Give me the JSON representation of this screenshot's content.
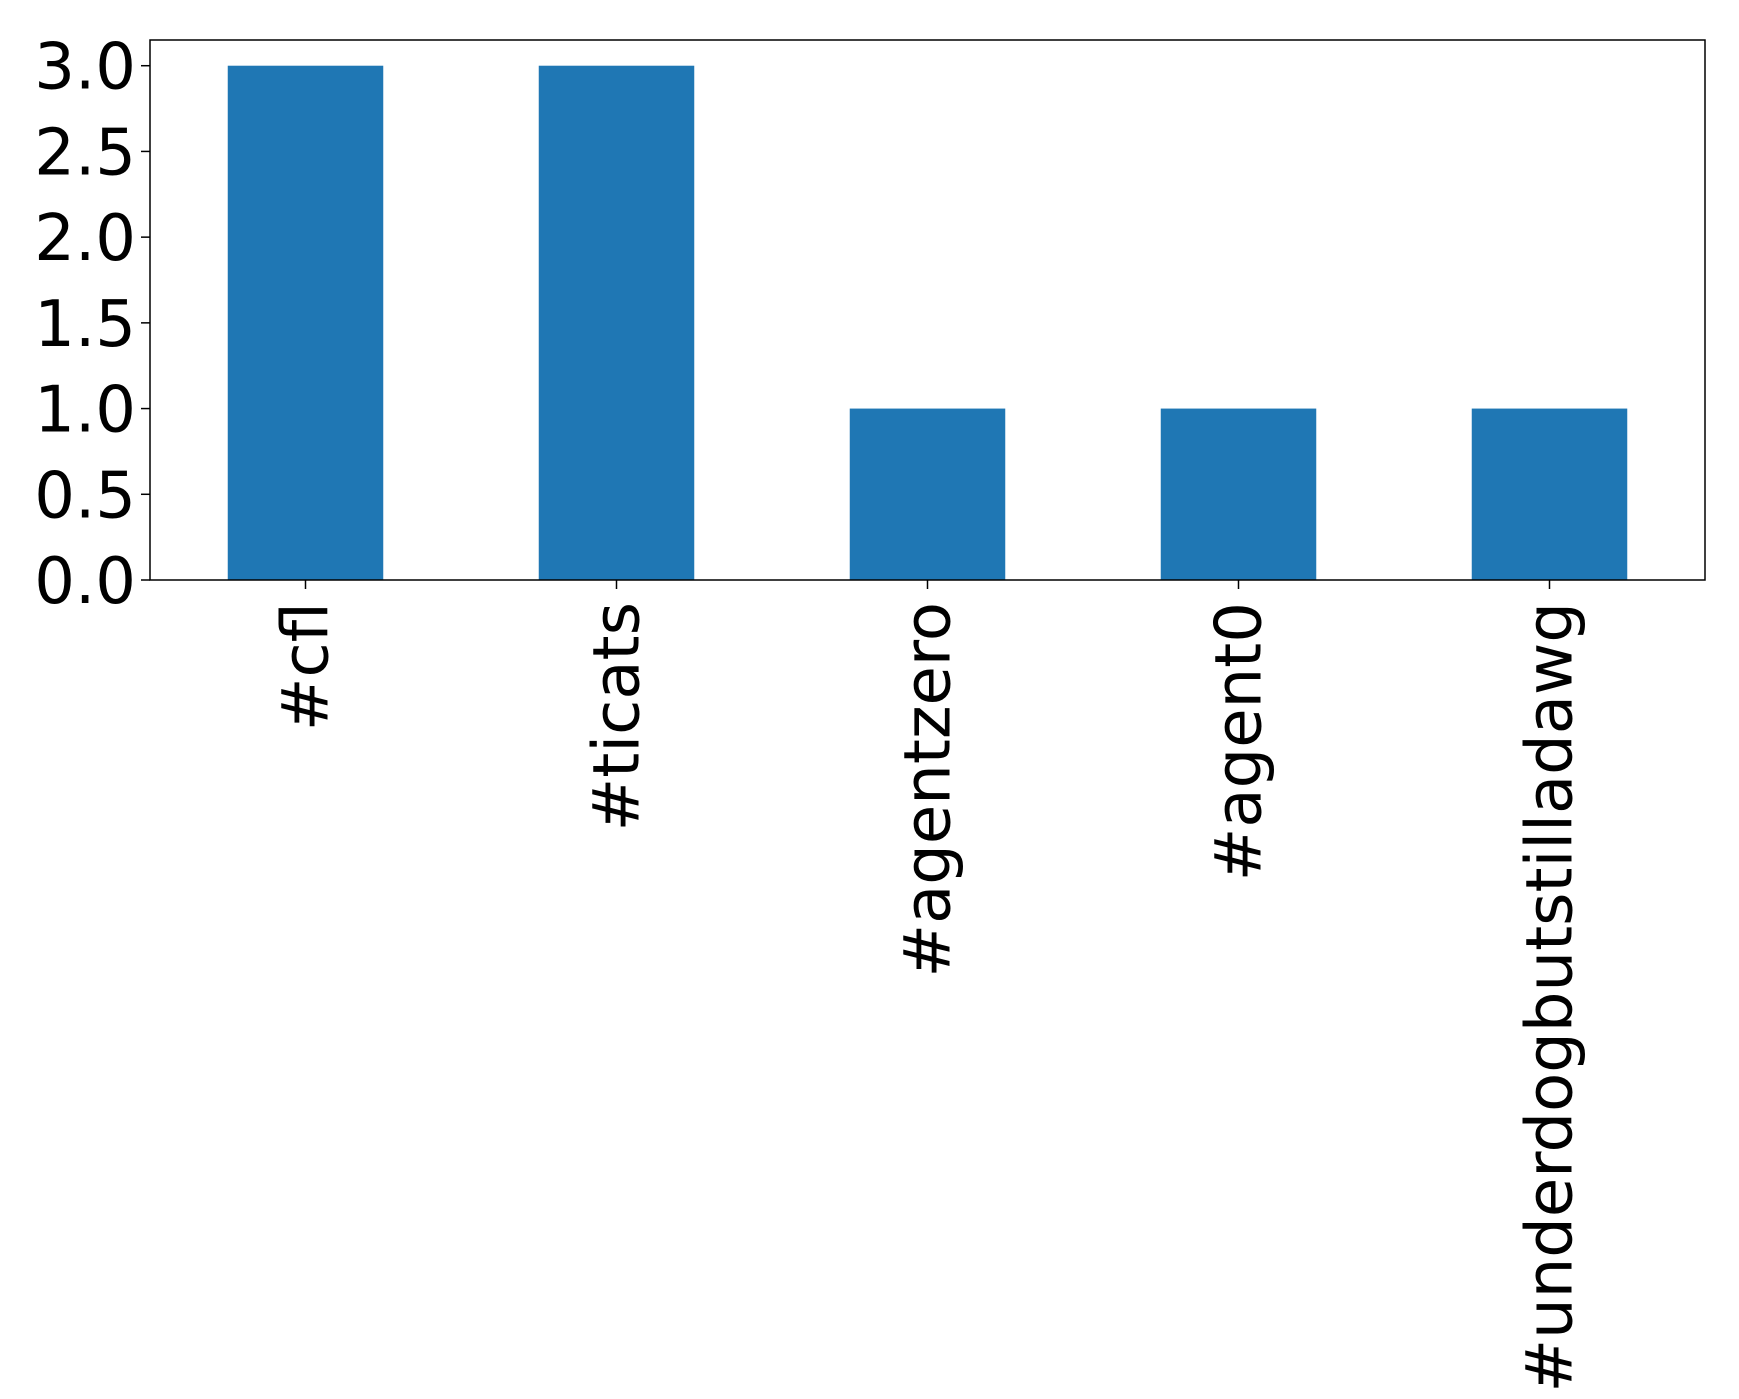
{
  "chart_data": {
    "type": "bar",
    "categories": [
      "#cfl",
      "#ticats",
      "#agentzero",
      "#agent0",
      "#underdogbutstilladawg"
    ],
    "values": [
      3,
      3,
      1,
      1,
      1
    ],
    "ylim": [
      0,
      3.15
    ],
    "yticks": [
      "0.0",
      "0.5",
      "1.0",
      "1.5",
      "2.0",
      "2.5",
      "3.0"
    ],
    "title": "",
    "xlabel": "",
    "ylabel": "",
    "grid": false,
    "legend": "none",
    "bar_color": "#1f77b4"
  }
}
